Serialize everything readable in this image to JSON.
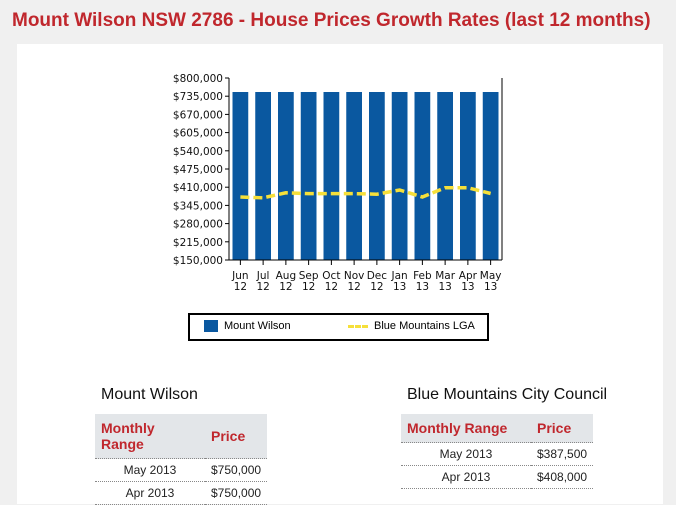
{
  "title": "Mount Wilson NSW 2786 - House Prices Growth Rates (last 12 months)",
  "chart_data": {
    "type": "bar",
    "categories": [
      [
        "Jun",
        "12"
      ],
      [
        "Jul",
        "12"
      ],
      [
        "Aug",
        "12"
      ],
      [
        "Sep",
        "12"
      ],
      [
        "Oct",
        "12"
      ],
      [
        "Nov",
        "12"
      ],
      [
        "Dec",
        "12"
      ],
      [
        "Jan",
        "13"
      ],
      [
        "Feb",
        "13"
      ],
      [
        "Mar",
        "13"
      ],
      [
        "Apr",
        "13"
      ],
      [
        "May",
        "13"
      ]
    ],
    "yticks": [
      "$800,000",
      "$735,000",
      "$670,000",
      "$605,000",
      "$540,000",
      "$475,000",
      "$410,000",
      "$345,000",
      "$280,000",
      "$215,000",
      "$150,000"
    ],
    "ylim": [
      150000,
      800000
    ],
    "series": [
      {
        "name": "Mount Wilson",
        "type": "bar",
        "color": "#0a58a0",
        "values": [
          750000,
          750000,
          750000,
          750000,
          750000,
          750000,
          750000,
          750000,
          750000,
          750000,
          750000,
          750000
        ]
      },
      {
        "name": "Blue Mountains LGA",
        "type": "line",
        "color": "#f6e03a",
        "values": [
          375000,
          372000,
          390000,
          387000,
          387000,
          387000,
          385000,
          400000,
          375000,
          408000,
          408000,
          387500
        ]
      }
    ],
    "legend": "bottom"
  },
  "tables": [
    {
      "heading": "Mount Wilson",
      "columns": [
        "Monthly Range",
        "Price"
      ],
      "rows": [
        [
          "May 2013",
          "$750,000"
        ],
        [
          "Apr 2013",
          "$750,000"
        ]
      ]
    },
    {
      "heading": "Blue Mountains City Council",
      "columns": [
        "Monthly Range",
        "Price"
      ],
      "rows": [
        [
          "May 2013",
          "$387,500"
        ],
        [
          "Apr 2013",
          "$408,000"
        ]
      ]
    }
  ]
}
